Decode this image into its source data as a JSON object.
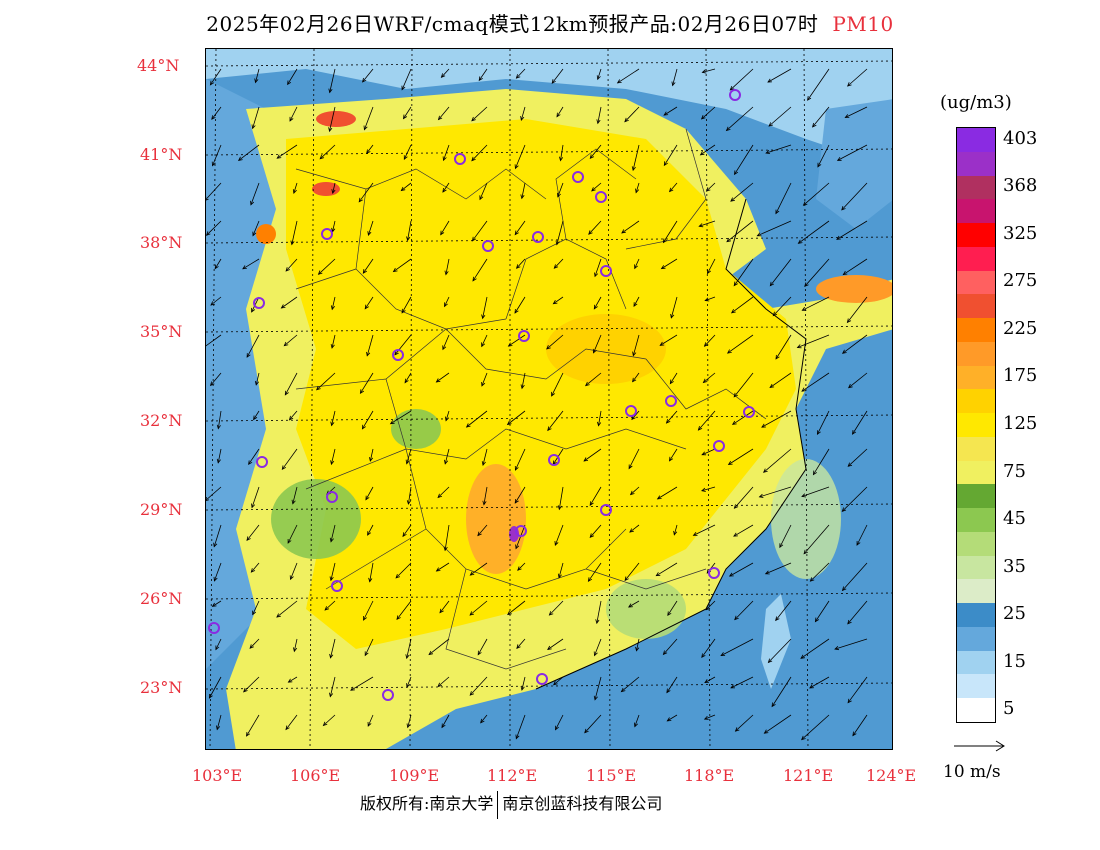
{
  "header": {
    "title": "2025年02月26日WRF/cmaq模式12km预报产品:02月26日07时",
    "variable": "PM10"
  },
  "map": {
    "lat_labels": [
      "44°N",
      "41°N",
      "38°N",
      "35°N",
      "32°N",
      "29°N",
      "26°N",
      "23°N"
    ],
    "lon_labels": [
      "103°E",
      "106°E",
      "109°E",
      "112°E",
      "115°E",
      "118°E",
      "121°E",
      "124°E"
    ],
    "extent": {
      "lon_min": 102.7,
      "lon_max": 124.0,
      "lat_min": 21.3,
      "lat_max": 44.3
    }
  },
  "legend": {
    "unit": "(ug/m3)",
    "levels": [
      {
        "label": "403",
        "color": "#8a2be2"
      },
      {
        "label": "",
        "color": "#9b30c8"
      },
      {
        "label": "368",
        "color": "#b03060"
      },
      {
        "label": "",
        "color": "#c8146e"
      },
      {
        "label": "325",
        "color": "#ff0000"
      },
      {
        "label": "",
        "color": "#ff1e50"
      },
      {
        "label": "275",
        "color": "#ff6060"
      },
      {
        "label": "",
        "color": "#f05030"
      },
      {
        "label": "225",
        "color": "#ff8000"
      },
      {
        "label": "",
        "color": "#ff9a28"
      },
      {
        "label": "175",
        "color": "#ffb028"
      },
      {
        "label": "",
        "color": "#ffd200"
      },
      {
        "label": "125",
        "color": "#ffe800"
      },
      {
        "label": "",
        "color": "#f5e650"
      },
      {
        "label": "75",
        "color": "#f0f060"
      },
      {
        "label": "",
        "color": "#64a832"
      },
      {
        "label": "45",
        "color": "#8cc850"
      },
      {
        "label": "",
        "color": "#b4dc78"
      },
      {
        "label": "35",
        "color": "#c8e6a0"
      },
      {
        "label": "",
        "color": "#dcecc8"
      },
      {
        "label": "25",
        "color": "#3c8cc8"
      },
      {
        "label": "",
        "color": "#64a8dc"
      },
      {
        "label": "15",
        "color": "#a0d2f0"
      },
      {
        "label": "",
        "color": "#c8e6fa"
      },
      {
        "label": "5",
        "color": "#ffffff"
      }
    ]
  },
  "wind_reference": {
    "label": "10 m/s"
  },
  "footer": {
    "left": "版权所有:南京大学",
    "right": "南京创蓝科技有限公司"
  },
  "colors": {
    "sea": "#3c8cc8",
    "land_low": "#f0f060",
    "land_mid": "#ffe800",
    "land_high": "#ffb028",
    "clean": "#8cc850",
    "label_red": "#e8303c",
    "station_ring": "#8a2be2"
  }
}
